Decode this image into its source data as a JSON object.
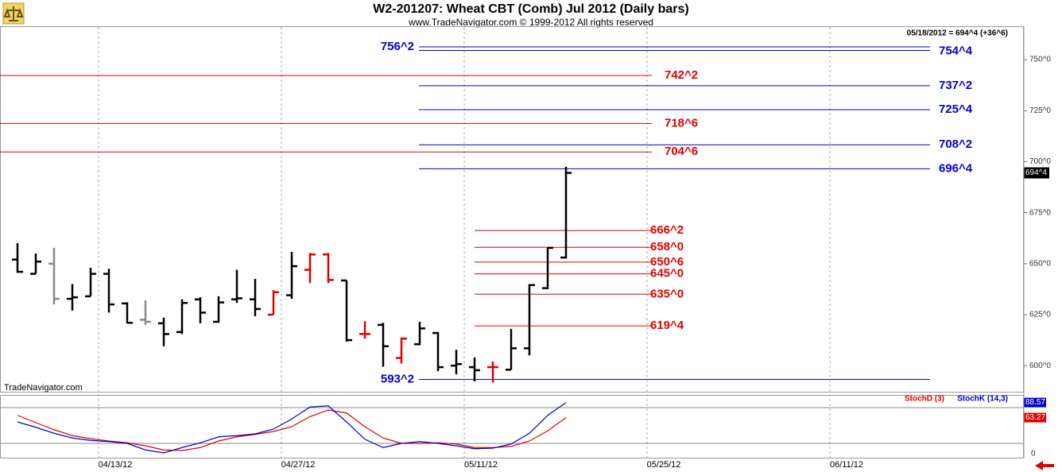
{
  "header": {
    "title": "W2-201207:  Wheat CBT (Comb) Jul 2012  (Daily bars)",
    "subtitle": "www.TradeNavigator.com © 1999-2012 All rights reserved",
    "note": "05/18/2012 = 694^4 (+36^6)",
    "watermark": "TradeNavigator.com"
  },
  "chart_data": [
    {
      "type": "ohlc",
      "categories": [
        null,
        null,
        null,
        null,
        null,
        "04/13/12",
        null,
        null,
        null,
        null,
        null,
        null,
        null,
        null,
        null,
        "04/27/12",
        null,
        null,
        null,
        null,
        null,
        null,
        null,
        null,
        null,
        "05/11/12",
        null,
        null,
        null,
        null,
        null,
        null,
        null,
        null,
        null,
        "05/25/12",
        null,
        null,
        null,
        null,
        null,
        null,
        null,
        null,
        null,
        "06/11/12"
      ],
      "open": [
        652,
        645,
        650,
        632.75,
        634,
        645,
        630.5,
        622.5,
        620.75,
        616.5,
        632.5,
        621.5,
        632.5,
        632.5,
        625,
        634.5,
        647,
        654.5,
        641.75,
        615.5,
        620,
        603.75,
        610.5,
        616,
        600,
        599.25,
        599.25,
        598,
        608.5,
        638,
        653,
        null,
        null,
        null,
        null,
        null,
        null,
        null,
        null,
        null,
        null,
        null,
        null,
        null,
        null,
        null
      ],
      "high": [
        660,
        655,
        657.75,
        640,
        648,
        647.5,
        631,
        632,
        623.5,
        632.5,
        633.5,
        634,
        647,
        642.5,
        637,
        655.75,
        655.25,
        655.25,
        641.75,
        621.75,
        621,
        613.75,
        621.5,
        616.5,
        607.75,
        604,
        602,
        618,
        640,
        658,
        697.5,
        null,
        null,
        null,
        null,
        null,
        null,
        null,
        null,
        null,
        null,
        null,
        null,
        null,
        null,
        null
      ],
      "low": [
        645.5,
        645,
        630,
        627,
        634,
        626,
        620.75,
        620,
        609.5,
        615.5,
        620.75,
        621,
        630.75,
        624.25,
        625,
        632.75,
        640.5,
        640.5,
        611.75,
        613.25,
        599.5,
        601,
        610,
        597.25,
        595.75,
        592.25,
        591.75,
        598,
        605,
        637.5,
        652.5,
        null,
        null,
        null,
        null,
        null,
        null,
        null,
        null,
        null,
        null,
        null,
        null,
        null,
        null,
        null
      ],
      "close": [
        646,
        651,
        632.75,
        633.5,
        645,
        630,
        621,
        621.5,
        615.5,
        630.75,
        626,
        631,
        633,
        627.75,
        636,
        648.75,
        654.5,
        642,
        612.5,
        615.5,
        609.5,
        613.25,
        618.25,
        599.25,
        600.75,
        597.75,
        599.25,
        608.5,
        639.5,
        657.75,
        694.5,
        null,
        null,
        null,
        null,
        null,
        null,
        null,
        null,
        null,
        null,
        null,
        null,
        null,
        null,
        null
      ],
      "close_label": "694^4",
      "bar_colors": [
        "#000000",
        "#000000",
        "#888888",
        "#000000",
        "#000000",
        "#000000",
        "#000000",
        "#888888",
        "#000000",
        "#000000",
        "#000000",
        "#000000",
        "#000000",
        "#000000",
        "#e00000",
        "#000000",
        "#e00000",
        "#e00000",
        "#000000",
        "#e00000",
        "#000000",
        "#e00000",
        "#000000",
        "#000000",
        "#000000",
        "#000000",
        "#e00000",
        "#000000",
        "#000000",
        "#000000",
        "#000000",
        null,
        null,
        null,
        null,
        null,
        null,
        null,
        null,
        null,
        null,
        null,
        null,
        null,
        null,
        null
      ],
      "ylim": [
        587.2,
        766.4
      ],
      "yticks": [
        {
          "value": 600,
          "label": "600^0"
        },
        {
          "value": 625,
          "label": "625^0"
        },
        {
          "value": 650,
          "label": "650^0"
        },
        {
          "value": 675,
          "label": "675^0"
        },
        {
          "value": 700,
          "label": "700^0"
        },
        {
          "value": 725,
          "label": "725^0"
        },
        {
          "value": 750,
          "label": "750^0"
        }
      ],
      "levels": [
        {
          "color": "#0000cc",
          "values": [
            756.25,
            754.5,
            737.25,
            725.5,
            708.25,
            696.5,
            593.25
          ],
          "value_labels": [
            "756^2",
            "754^4",
            "737^2",
            "725^4",
            "708^2",
            "696^4",
            "593^2"
          ]
        },
        {
          "color": "#e00000",
          "values": [
            742.25,
            718.75,
            704.75
          ],
          "value_labels": [
            "742^2",
            "718^6",
            "704^6"
          ]
        },
        {
          "color": "#e00000",
          "values": [
            666.25,
            658,
            650.75,
            645,
            635,
            619.5
          ],
          "value_labels": [
            "666^2",
            "658^0",
            "650^6",
            "645^0",
            "635^0",
            "619^4"
          ]
        }
      ]
    },
    {
      "type": "line",
      "series": [
        {
          "name": "StochD (3)",
          "color": "#e00000",
          "values": [
            67,
            55,
            43,
            33,
            28,
            24,
            21,
            16,
            9,
            8,
            13,
            24,
            31,
            35,
            40,
            48,
            65,
            76,
            71,
            48,
            29,
            20,
            20,
            21,
            19,
            13,
            13,
            15,
            24,
            41,
            63.27
          ]
        },
        {
          "name": "StochK (14,3)",
          "color": "#0000cc",
          "values": [
            56,
            47,
            37,
            29,
            25,
            23,
            20,
            9,
            4,
            13,
            21,
            31,
            33,
            36,
            44,
            61,
            81,
            83,
            56,
            27,
            13,
            20,
            23,
            20,
            16,
            11,
            12,
            19,
            37,
            67,
            88.57
          ]
        }
      ],
      "ylim": [
        0,
        100
      ],
      "yticks": [
        0
      ],
      "levels": [
        20,
        80
      ]
    }
  ]
}
